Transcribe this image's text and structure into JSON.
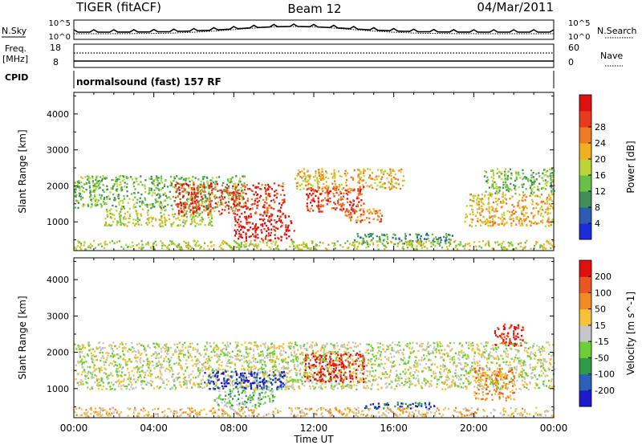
{
  "header": {
    "radar": "TIGER (fitACF)",
    "beam": "Beam 12",
    "date": "04/Mar/2011"
  },
  "sky_panel": {
    "left_label": "N.Sky",
    "right_label": "N.Search",
    "left_ticks": [
      "10^5",
      "10^0"
    ],
    "right_ticks": [
      "10^5",
      "10^0"
    ]
  },
  "freq_panel": {
    "left_label_1": "Freq.",
    "left_label_2": "[MHz]",
    "right_label": "Nave",
    "left_ticks": [
      "18",
      "8"
    ],
    "right_ticks": [
      "60",
      "0"
    ]
  },
  "cpid_panel": {
    "label": "CPID",
    "text": "normalsound (fast) 157 RF"
  },
  "colors": {
    "power": [
      "#1c2cd6",
      "#2c5bb0",
      "#3f8f5a",
      "#68c046",
      "#b8d638",
      "#f0b020",
      "#ee7a22",
      "#e83a1c",
      "#e01010"
    ],
    "velocity": [
      "#1b1bcc",
      "#2a60b8",
      "#2e9b4a",
      "#6ccf3a",
      "#c6c6c6",
      "#f5c23a",
      "#f08c25",
      "#ea5620",
      "#e01010"
    ]
  },
  "chart_data": [
    {
      "type": "heatmap",
      "quantity": "Power",
      "ylabel": "Slant Range [km]",
      "xlabel": "",
      "x_ticks": [
        "00:00",
        "04:00",
        "08:00",
        "12:00",
        "16:00",
        "20:00",
        "00:00"
      ],
      "y_ticks": [
        1000,
        2000,
        3000,
        4000
      ],
      "ylim": [
        200,
        4600
      ],
      "xlim_hours": [
        0,
        24
      ],
      "colorbar": {
        "label": "Power [dB]",
        "ticks": [
          4,
          8,
          12,
          16,
          20,
          24,
          28
        ]
      },
      "bands": [
        {
          "start_h": 0.0,
          "end_h": 8.5,
          "range_lo_km": 1400,
          "range_hi_km": 2300,
          "level": 3
        },
        {
          "start_h": 1.5,
          "end_h": 7.0,
          "range_lo_km": 900,
          "range_hi_km": 1400,
          "level": 4
        },
        {
          "start_h": 5.0,
          "end_h": 10.5,
          "range_lo_km": 1200,
          "range_hi_km": 2100,
          "level": 7
        },
        {
          "start_h": 8.0,
          "end_h": 11.0,
          "range_lo_km": 500,
          "range_hi_km": 1200,
          "level": 8
        },
        {
          "start_h": 11.0,
          "end_h": 16.5,
          "range_lo_km": 1900,
          "range_hi_km": 2500,
          "level": 5
        },
        {
          "start_h": 11.5,
          "end_h": 14.5,
          "range_lo_km": 1300,
          "range_hi_km": 2000,
          "level": 7
        },
        {
          "start_h": 13.5,
          "end_h": 15.5,
          "range_lo_km": 1000,
          "range_hi_km": 1400,
          "level": 6
        },
        {
          "start_h": 14.0,
          "end_h": 19.0,
          "range_lo_km": 400,
          "range_hi_km": 700,
          "level": 2
        },
        {
          "start_h": 19.5,
          "end_h": 24.0,
          "range_lo_km": 900,
          "range_hi_km": 1800,
          "level": 5
        },
        {
          "start_h": 20.5,
          "end_h": 24.0,
          "range_lo_km": 1800,
          "range_hi_km": 2500,
          "level": 3
        },
        {
          "start_h": 0.0,
          "end_h": 24.0,
          "range_lo_km": 250,
          "range_hi_km": 500,
          "level": 4
        }
      ]
    },
    {
      "type": "heatmap",
      "quantity": "Velocity",
      "ylabel": "Slant Range [km]",
      "xlabel": "Time UT",
      "x_ticks": [
        "00:00",
        "04:00",
        "08:00",
        "12:00",
        "16:00",
        "20:00",
        "00:00"
      ],
      "y_ticks": [
        1000,
        2000,
        3000,
        4000
      ],
      "ylim": [
        200,
        4600
      ],
      "xlim_hours": [
        0,
        24
      ],
      "colorbar": {
        "label": "Velocity [m s^-1]",
        "ticks": [
          200,
          100,
          50,
          15,
          -15,
          -50,
          -100,
          -200
        ]
      },
      "bands": [
        {
          "start_h": 0.0,
          "end_h": 24.0,
          "range_lo_km": 1000,
          "range_hi_km": 2300,
          "level": 4
        },
        {
          "start_h": 6.5,
          "end_h": 10.5,
          "range_lo_km": 1000,
          "range_hi_km": 1500,
          "level": 0
        },
        {
          "start_h": 7.0,
          "end_h": 10.0,
          "range_lo_km": 500,
          "range_hi_km": 1000,
          "level": 3
        },
        {
          "start_h": 11.5,
          "end_h": 14.5,
          "range_lo_km": 1200,
          "range_hi_km": 2000,
          "level": 8
        },
        {
          "start_h": 14.5,
          "end_h": 18.0,
          "range_lo_km": 450,
          "range_hi_km": 650,
          "level": 1
        },
        {
          "start_h": 20.0,
          "end_h": 22.0,
          "range_lo_km": 700,
          "range_hi_km": 1600,
          "level": 6
        },
        {
          "start_h": 21.0,
          "end_h": 22.5,
          "range_lo_km": 2200,
          "range_hi_km": 2800,
          "level": 8
        },
        {
          "start_h": 0.0,
          "end_h": 24.0,
          "range_lo_km": 250,
          "range_hi_km": 500,
          "level": 5
        }
      ]
    }
  ]
}
